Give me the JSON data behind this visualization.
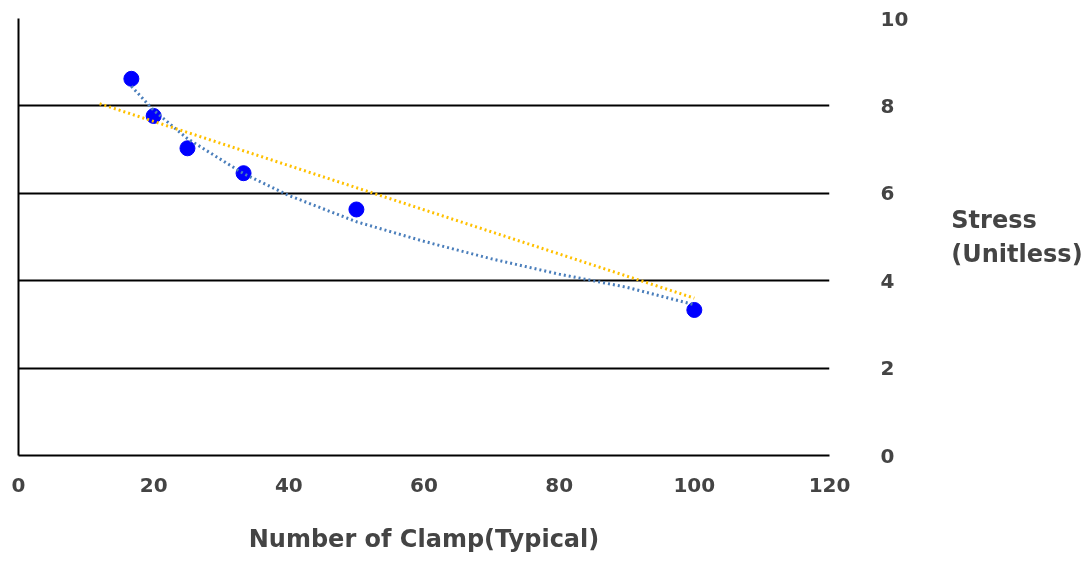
{
  "chart_data": {
    "type": "scatter",
    "xlabel": "Number of Clamp(Typical)",
    "y2label": "Stress\n(Unitless)",
    "xlim": [
      0,
      120
    ],
    "xticks": [
      0,
      20,
      40,
      60,
      80,
      100,
      120
    ],
    "y2lim": [
      0,
      10
    ],
    "y2ticks": [
      0,
      2,
      4,
      6,
      8,
      10
    ],
    "grid": "y",
    "marker": "circle",
    "series": [
      {
        "axis": "y2",
        "color": "#0000ff",
        "x": [
          16.7,
          20,
          25,
          33.3,
          50,
          100
        ],
        "values": [
          8.62,
          7.77,
          7.03,
          6.46,
          5.63,
          3.33
        ]
      },
      {
        "type": "line",
        "axis": "y2",
        "color": "#4a7ebb",
        "line_style": "dotted",
        "marker": "none",
        "x": [
          16.7,
          20,
          25,
          33.3,
          40,
          50,
          60,
          70,
          80,
          90,
          100
        ],
        "values": [
          8.45,
          7.9,
          7.25,
          6.45,
          5.95,
          5.35,
          4.9,
          4.5,
          4.15,
          3.85,
          3.45
        ]
      },
      {
        "type": "line",
        "axis": "y2",
        "color": "#ffc000",
        "line_style": "dotted",
        "marker": "none",
        "x": [
          12,
          100
        ],
        "values": [
          8.05,
          3.6
        ]
      }
    ]
  }
}
